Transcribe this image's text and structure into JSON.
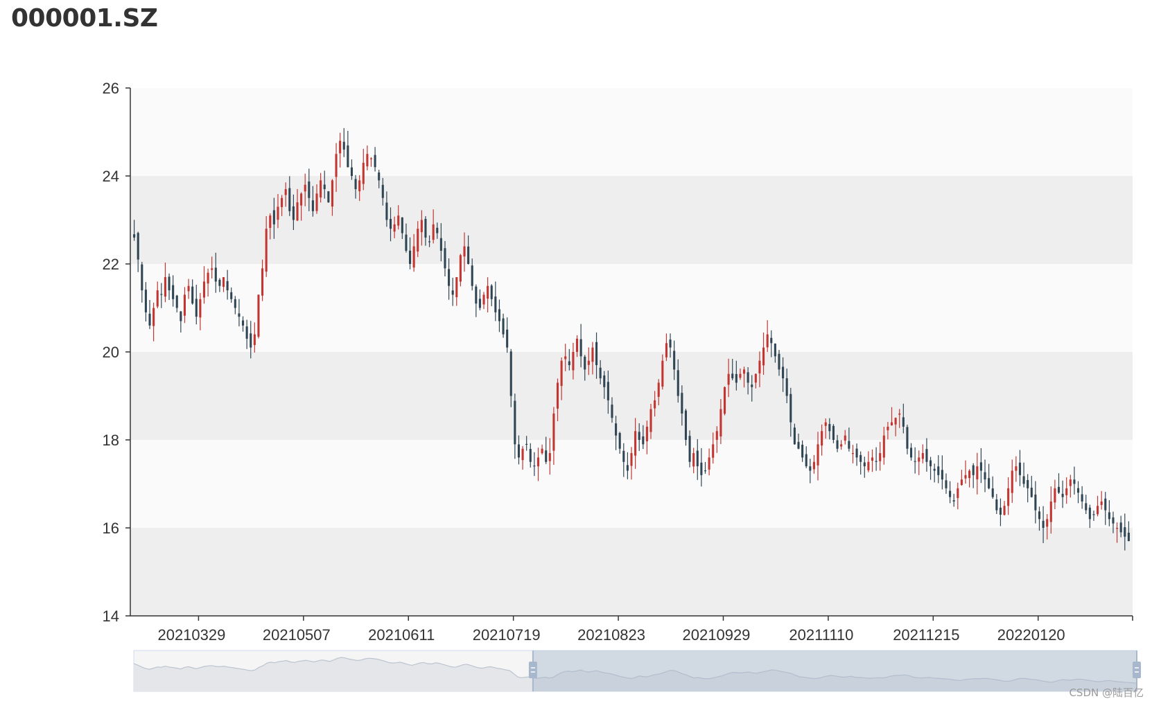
{
  "header": {
    "title": "000001.SZ"
  },
  "watermark": "CSDN @陆百亿",
  "chart_data": {
    "type": "candlestick",
    "title": "000001.SZ",
    "ylim": [
      14,
      26
    ],
    "y_ticks": [
      "14",
      "16",
      "18",
      "20",
      "22",
      "24",
      "26"
    ],
    "x_tick_labels": [
      "20210329",
      "20210507",
      "20210611",
      "20210719",
      "20210823",
      "20210929",
      "20211110",
      "20211215",
      "20220120"
    ],
    "y_split_area": true,
    "colors": {
      "up": "#c23531",
      "down": "#2f4554",
      "axis": "#333333",
      "band_light": "#fafafa",
      "band_dark": "#eeeeee"
    },
    "close_series": [
      22.6,
      22.1,
      21.4,
      20.9,
      20.6,
      21.0,
      21.4,
      21.3,
      21.7,
      21.4,
      21.2,
      21.0,
      20.7,
      21.3,
      21.5,
      21.1,
      20.8,
      21.2,
      21.6,
      21.8,
      21.9,
      21.6,
      21.5,
      21.7,
      21.4,
      21.2,
      21.0,
      20.8,
      20.6,
      20.3,
      20.1,
      20.4,
      21.3,
      21.9,
      22.8,
      23.1,
      22.9,
      23.3,
      23.5,
      23.7,
      23.2,
      23.0,
      23.4,
      23.6,
      23.8,
      23.5,
      23.2,
      23.6,
      23.9,
      23.7,
      23.4,
      23.9,
      24.5,
      24.8,
      24.6,
      24.2,
      24.0,
      23.7,
      23.9,
      24.3,
      24.5,
      24.4,
      24.2,
      23.9,
      23.5,
      23.0,
      22.8,
      22.9,
      23.1,
      22.7,
      22.3,
      22.0,
      22.4,
      22.8,
      23.0,
      22.6,
      22.5,
      22.9,
      22.7,
      22.3,
      21.9,
      21.5,
      21.3,
      21.7,
      22.2,
      22.4,
      22.0,
      21.5,
      21.1,
      21.0,
      21.3,
      21.5,
      21.2,
      20.9,
      20.7,
      20.4,
      20.1,
      19.0,
      17.9,
      17.6,
      17.8,
      17.9,
      17.5,
      17.4,
      17.6,
      17.8,
      17.5,
      17.7,
      18.6,
      19.3,
      19.8,
      19.9,
      19.7,
      20.0,
      20.3,
      19.9,
      19.6,
      19.8,
      20.1,
      19.7,
      19.4,
      19.2,
      18.9,
      18.5,
      18.1,
      17.8,
      17.5,
      17.3,
      17.7,
      18.2,
      18.0,
      17.9,
      18.3,
      18.7,
      18.9,
      19.3,
      19.8,
      20.2,
      20.1,
      19.6,
      19.0,
      18.6,
      18.0,
      17.5,
      17.7,
      17.4,
      17.2,
      17.3,
      17.6,
      17.9,
      18.2,
      18.7,
      19.2,
      19.5,
      19.4,
      19.3,
      19.5,
      19.6,
      19.3,
      19.2,
      19.5,
      19.8,
      20.1,
      20.4,
      20.2,
      19.9,
      19.6,
      19.4,
      19.0,
      18.4,
      17.9,
      17.8,
      17.6,
      17.4,
      17.3,
      17.5,
      17.9,
      18.2,
      18.4,
      18.2,
      18.0,
      17.8,
      17.9,
      18.1,
      17.8,
      17.7,
      17.6,
      17.5,
      17.4,
      17.5,
      17.6,
      17.5,
      17.7,
      18.1,
      18.3,
      18.4,
      18.5,
      18.6,
      18.3,
      17.8,
      17.6,
      17.5,
      17.6,
      17.7,
      17.5,
      17.4,
      17.3,
      17.2,
      17.1,
      16.9,
      16.7,
      16.6,
      16.9,
      17.1,
      17.2,
      17.3,
      17.2,
      17.4,
      17.3,
      17.1,
      16.9,
      16.7,
      16.4,
      16.3,
      16.5,
      16.9,
      17.3,
      17.4,
      17.2,
      17.0,
      16.9,
      16.7,
      16.4,
      16.2,
      16.0,
      16.2,
      16.6,
      16.9,
      16.8,
      16.7,
      16.9,
      17.1,
      17.0,
      16.8,
      16.6,
      16.4,
      16.2,
      16.3,
      16.5,
      16.6,
      16.4,
      16.2,
      16.1,
      16.0,
      15.9,
      15.8,
      15.7
    ],
    "data_zoom": {
      "start_percent": 39.8,
      "end_percent": 100
    }
  }
}
